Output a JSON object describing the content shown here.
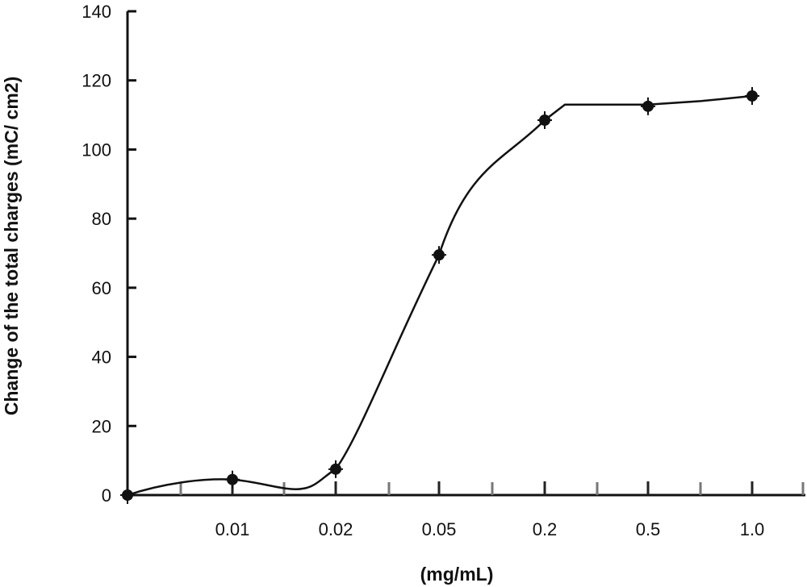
{
  "chart_data": {
    "type": "line",
    "title": "",
    "xlabel": "(mg/mL)",
    "ylabel": "Change of the total charges (mC/ cm2)",
    "ylim": [
      0,
      140
    ],
    "yticks": [
      "0",
      "20",
      "40",
      "60",
      "80",
      "100",
      "120",
      "140"
    ],
    "xticks": [
      "0.01",
      "0.02",
      "0.05",
      "0.2",
      "0.5",
      "1.0"
    ],
    "grid": false,
    "legend": "none",
    "colors": {
      "line": "#111111",
      "axis": "#111111"
    },
    "series": [
      {
        "points": [
          {
            "x": "0",
            "y": 0
          },
          {
            "x": "0.01",
            "y": 4.5
          },
          {
            "x": "0.02",
            "y": 7.5
          },
          {
            "x": "0.05",
            "y": 69.5
          },
          {
            "x": "0.2",
            "y": 108.5
          },
          {
            "x": "0.5",
            "y": 112.5
          },
          {
            "x": "1.0",
            "y": 115.5
          }
        ]
      }
    ]
  }
}
